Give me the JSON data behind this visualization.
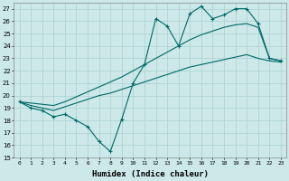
{
  "xlabel": "Humidex (Indice chaleur)",
  "ylabel": "",
  "background_color": "#cce8e8",
  "grid_color": "#aad0d0",
  "line_color": "#006868",
  "xlim": [
    -0.5,
    23.5
  ],
  "ylim": [
    15,
    27.5
  ],
  "yticks": [
    15,
    16,
    17,
    18,
    19,
    20,
    21,
    22,
    23,
    24,
    25,
    26,
    27
  ],
  "xticks": [
    0,
    1,
    2,
    3,
    4,
    5,
    6,
    7,
    8,
    9,
    10,
    11,
    12,
    13,
    14,
    15,
    16,
    17,
    18,
    19,
    20,
    21,
    22,
    23
  ],
  "series": {
    "zigzag": [
      19.5,
      19.0,
      18.8,
      18.3,
      18.5,
      18.0,
      17.5,
      16.3,
      15.5,
      18.1,
      21.0,
      22.5,
      26.2,
      25.6,
      24.0,
      26.6,
      27.2,
      26.2,
      26.5,
      27.0,
      27.0,
      25.8,
      23.0,
      22.8
    ],
    "lower_line": [
      19.5,
      19.2,
      19.0,
      18.8,
      19.1,
      19.4,
      19.7,
      20.0,
      20.2,
      20.5,
      20.8,
      21.1,
      21.4,
      21.7,
      22.0,
      22.3,
      22.5,
      22.7,
      22.9,
      23.1,
      23.3,
      23.0,
      22.8,
      22.7
    ],
    "upper_line": [
      19.5,
      19.4,
      19.3,
      19.2,
      19.5,
      19.9,
      20.3,
      20.7,
      21.1,
      21.5,
      22.0,
      22.5,
      23.0,
      23.5,
      24.0,
      24.5,
      24.9,
      25.2,
      25.5,
      25.7,
      25.8,
      25.5,
      23.0,
      22.8
    ]
  }
}
